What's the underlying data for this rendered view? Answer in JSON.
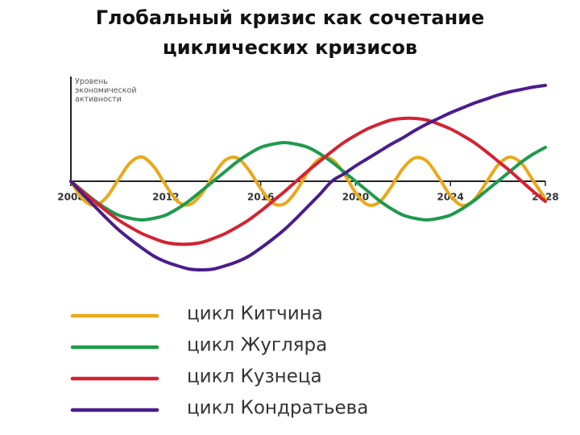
{
  "chart_data": {
    "type": "line",
    "title": [
      "Глобальный кризис как сочетание",
      "циклических кризисов"
    ],
    "y_label": "Уровень экономической активности",
    "x": [
      2008,
      2008.5,
      2009,
      2009.5,
      2010,
      2010.5,
      2011,
      2011.5,
      2012,
      2012.5,
      2013,
      2013.5,
      2014,
      2014.5,
      2015,
      2015.5,
      2016,
      2016.5,
      2017,
      2017.5,
      2018,
      2018.5,
      2019,
      2019.5,
      2020,
      2020.5,
      2021,
      2021.5,
      2022,
      2022.5,
      2023,
      2023.5,
      2024,
      2024.5,
      2025,
      2025.5,
      2026,
      2026.5,
      2027,
      2027.5,
      2028
    ],
    "xlim": [
      2008,
      2028
    ],
    "xticks": [
      2008,
      2012,
      2016,
      2020,
      2024,
      2028
    ],
    "ylim": [
      -12,
      13
    ],
    "grid": false,
    "legend": "bottom-left",
    "series": [
      {
        "name": "цикл Китчина",
        "color": "#e9a91a",
        "values": [
          0,
          -2.2,
          -3.0,
          -2.0,
          0.2,
          2.3,
          3.0,
          1.8,
          -0.5,
          -2.5,
          -2.9,
          -1.6,
          0.7,
          2.6,
          2.9,
          1.4,
          -0.9,
          -2.7,
          -2.8,
          -1.2,
          1.2,
          2.8,
          2.7,
          1.0,
          -1.4,
          -2.9,
          -2.6,
          -0.7,
          1.6,
          2.9,
          2.5,
          0.5,
          -1.8,
          -3.0,
          -2.3,
          -0.2,
          2.0,
          3.0,
          2.2,
          0.0,
          -2.2
        ]
      },
      {
        "name": "цикл Жугляра",
        "color": "#1e9a4c",
        "values": [
          0,
          -1.2,
          -2.4,
          -3.4,
          -4.2,
          -4.6,
          -4.8,
          -4.6,
          -4.2,
          -3.4,
          -2.4,
          -1.2,
          0,
          1.2,
          2.4,
          3.4,
          4.2,
          4.6,
          4.8,
          4.6,
          4.2,
          3.4,
          2.4,
          1.2,
          0,
          -1.2,
          -2.4,
          -3.4,
          -4.2,
          -4.6,
          -4.8,
          -4.6,
          -4.2,
          -3.4,
          -2.4,
          -1.2,
          0,
          1.2,
          2.4,
          3.4,
          4.2
        ]
      },
      {
        "name": "цикл Кузнеца",
        "color": "#d42232",
        "values": [
          0,
          -1.3,
          -2.5,
          -3.7,
          -4.8,
          -5.7,
          -6.5,
          -7.1,
          -7.6,
          -7.8,
          -7.8,
          -7.6,
          -7.1,
          -6.5,
          -5.7,
          -4.8,
          -3.7,
          -2.5,
          -1.3,
          0,
          1.3,
          2.5,
          3.7,
          4.8,
          5.7,
          6.5,
          7.1,
          7.6,
          7.8,
          7.8,
          7.6,
          7.1,
          6.5,
          5.7,
          4.8,
          3.7,
          2.5,
          1.3,
          0,
          -1.3,
          -2.5
        ]
      },
      {
        "name": "цикл Кондратьева",
        "color": "#4a1d8c",
        "values": [
          0,
          -1.6,
          -3.1,
          -4.6,
          -6.0,
          -7.2,
          -8.3,
          -9.3,
          -10.0,
          -10.5,
          -10.9,
          -11.0,
          -10.9,
          -10.5,
          -10.0,
          -9.3,
          -8.3,
          -7.2,
          -6.0,
          -4.6,
          -3.1,
          -1.6,
          0,
          0.9,
          1.9,
          2.8,
          3.7,
          4.6,
          5.4,
          6.3,
          7.1,
          7.8,
          8.5,
          9.1,
          9.7,
          10.2,
          10.7,
          11.1,
          11.4,
          11.7,
          11.9
        ]
      }
    ]
  }
}
